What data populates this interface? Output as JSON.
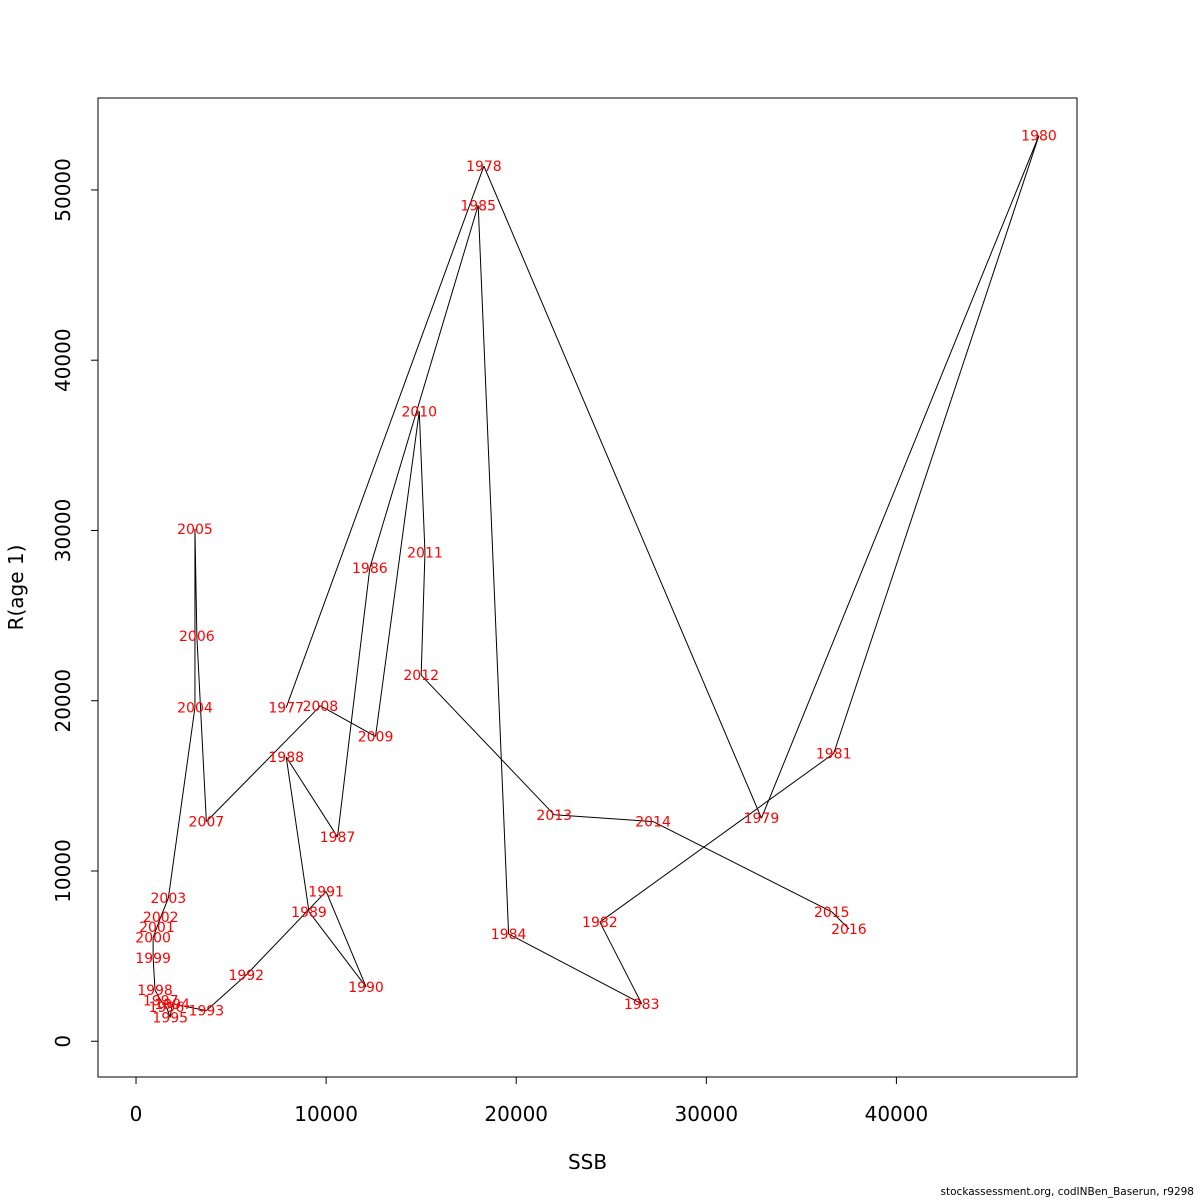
{
  "chart_data": {
    "type": "line",
    "xlabel": "SSB",
    "ylabel": "R(age 1)",
    "xlim": [
      -2000,
      49500
    ],
    "ylim": [
      -2100,
      55400
    ],
    "xticks": [
      0,
      10000,
      20000,
      30000,
      40000
    ],
    "xtick_labels": [
      "0",
      "10000",
      "20000",
      "30000",
      "40000"
    ],
    "yticks": [
      0,
      10000,
      20000,
      30000,
      40000,
      50000
    ],
    "ytick_labels": [
      "0",
      "10000",
      "20000",
      "30000",
      "40000",
      "50000"
    ],
    "grid": false,
    "line_color": "#000000",
    "label_color": "#ff0000",
    "points": [
      {
        "year": "1977",
        "x": 7900,
        "y": 19600
      },
      {
        "year": "1978",
        "x": 18300,
        "y": 51400
      },
      {
        "year": "1979",
        "x": 32900,
        "y": 13100
      },
      {
        "year": "1980",
        "x": 47500,
        "y": 53200
      },
      {
        "year": "1981",
        "x": 36700,
        "y": 16900
      },
      {
        "year": "1982",
        "x": 24400,
        "y": 7000
      },
      {
        "year": "1983",
        "x": 26600,
        "y": 2200
      },
      {
        "year": "1984",
        "x": 19600,
        "y": 6300
      },
      {
        "year": "1985",
        "x": 18000,
        "y": 49100
      },
      {
        "year": "1986",
        "x": 12300,
        "y": 27800
      },
      {
        "year": "1987",
        "x": 10600,
        "y": 12000
      },
      {
        "year": "1988",
        "x": 7900,
        "y": 16700
      },
      {
        "year": "1989",
        "x": 9100,
        "y": 7600
      },
      {
        "year": "1990",
        "x": 12100,
        "y": 3200
      },
      {
        "year": "1991",
        "x": 10000,
        "y": 8800
      },
      {
        "year": "1992",
        "x": 5800,
        "y": 3900
      },
      {
        "year": "1993",
        "x": 3700,
        "y": 1800
      },
      {
        "year": "1994",
        "x": 1900,
        "y": 2200
      },
      {
        "year": "1995",
        "x": 1800,
        "y": 1400
      },
      {
        "year": "1996",
        "x": 1600,
        "y": 2000
      },
      {
        "year": "1997",
        "x": 1300,
        "y": 2400
      },
      {
        "year": "1998",
        "x": 1000,
        "y": 3000
      },
      {
        "year": "1999",
        "x": 900,
        "y": 4900
      },
      {
        "year": "2000",
        "x": 900,
        "y": 6100
      },
      {
        "year": "2001",
        "x": 1100,
        "y": 6700
      },
      {
        "year": "2002",
        "x": 1300,
        "y": 7300
      },
      {
        "year": "2003",
        "x": 1700,
        "y": 8400
      },
      {
        "year": "2004",
        "x": 3100,
        "y": 19600
      },
      {
        "year": "2005",
        "x": 3100,
        "y": 30100
      },
      {
        "year": "2006",
        "x": 3200,
        "y": 23800
      },
      {
        "year": "2007",
        "x": 3700,
        "y": 12900
      },
      {
        "year": "2008",
        "x": 9700,
        "y": 19700
      },
      {
        "year": "2009",
        "x": 12600,
        "y": 17900
      },
      {
        "year": "2010",
        "x": 14900,
        "y": 37000
      },
      {
        "year": "2011",
        "x": 15200,
        "y": 28700
      },
      {
        "year": "2012",
        "x": 15000,
        "y": 21500
      },
      {
        "year": "2013",
        "x": 22000,
        "y": 13300
      },
      {
        "year": "2014",
        "x": 27200,
        "y": 12900
      },
      {
        "year": "2015",
        "x": 36600,
        "y": 7600
      },
      {
        "year": "2016",
        "x": 37500,
        "y": 6600
      }
    ]
  },
  "caption": "stockassessment.org, codINBen_Baserun, r9298"
}
